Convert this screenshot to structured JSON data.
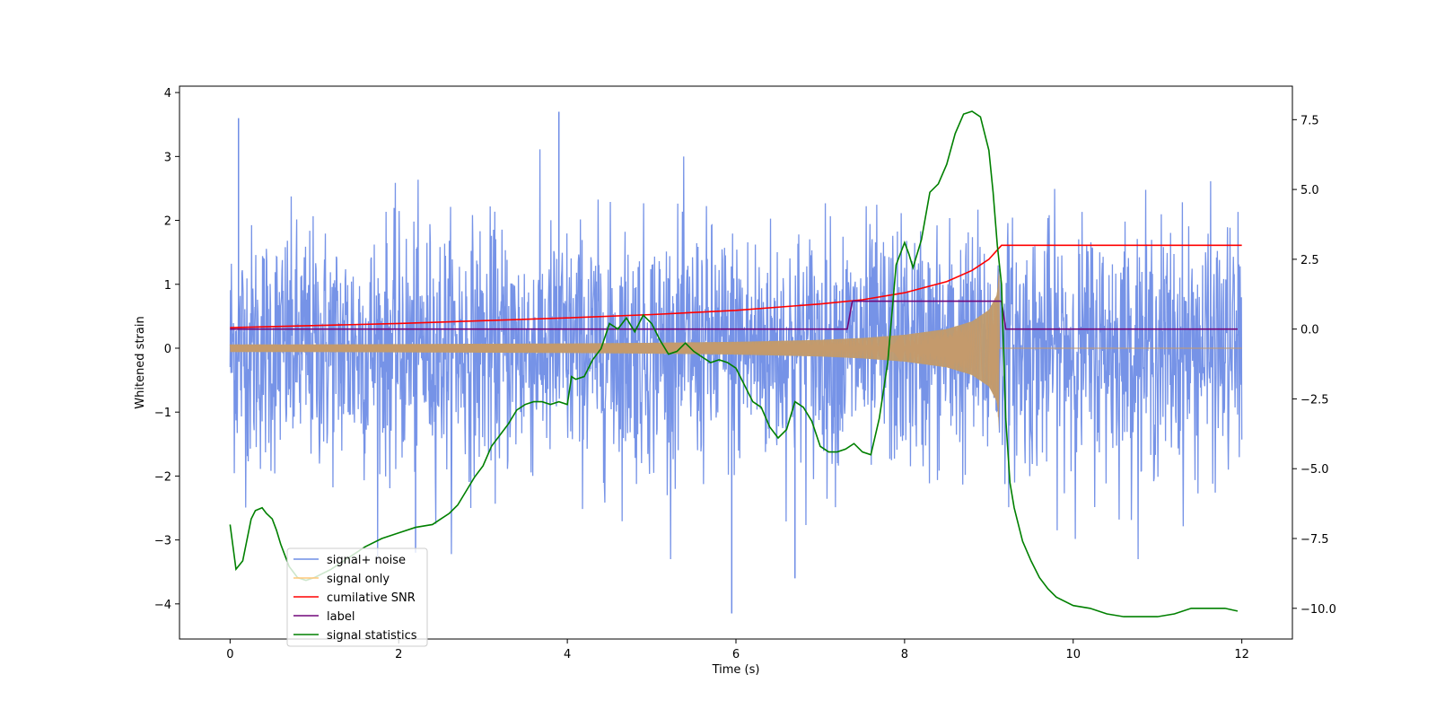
{
  "chart_data": {
    "type": "line",
    "title": "",
    "xlabel": "Time (s)",
    "ylabel": "Whitened strain",
    "ylabel_right": "",
    "xlim": [
      -0.6,
      12.6
    ],
    "ylim_left": [
      -4.55,
      4.1
    ],
    "ylim_right": [
      -11.1,
      8.7
    ],
    "xticks": [
      0,
      2,
      4,
      6,
      8,
      10,
      12
    ],
    "xtick_labels": [
      "0",
      "2",
      "4",
      "6",
      "8",
      "10",
      "12"
    ],
    "yticks_left": [
      4,
      3,
      2,
      1,
      0,
      -1,
      -2,
      -3,
      -4
    ],
    "ytick_labels_left": [
      "4",
      "3",
      "2",
      "1",
      "0",
      "−1",
      "−2",
      "−3",
      "−4"
    ],
    "yticks_right": [
      7.5,
      5.0,
      2.5,
      0.0,
      -2.5,
      -5.0,
      -7.5,
      -10.0
    ],
    "ytick_labels_right": [
      "7.5",
      "5.0",
      "2.5",
      "0.0",
      "−2.5",
      "−5.0",
      "−7.5",
      "−10.0"
    ],
    "grid": false,
    "legend_position": "lower-left",
    "series": [
      {
        "name": "signal+ noise",
        "axis": "left",
        "color": "#6f8de6",
        "kind": "noisy",
        "x_range": [
          0,
          12
        ],
        "std": 0.95,
        "notable_extremes": [
          [
            0.1,
            3.6
          ],
          [
            3.9,
            3.7
          ],
          [
            5.95,
            -4.15
          ],
          [
            6.7,
            -3.6
          ],
          [
            2.2,
            -3.2
          ]
        ]
      },
      {
        "name": "signal only",
        "axis": "left",
        "color": "#ffc87a",
        "kind": "chirp-envelope",
        "x": [
          0,
          1,
          2,
          3,
          4,
          5,
          6,
          7,
          7.5,
          8,
          8.5,
          8.8,
          9.0,
          9.1,
          9.12,
          9.13,
          12
        ],
        "amplitude": [
          0.06,
          0.06,
          0.065,
          0.07,
          0.075,
          0.085,
          0.1,
          0.13,
          0.16,
          0.21,
          0.3,
          0.42,
          0.6,
          0.85,
          1.3,
          0.0,
          0.0
        ]
      },
      {
        "name": "cumilative SNR",
        "axis": "right",
        "color": "#ff0000",
        "x": [
          0,
          2,
          4,
          5,
          6,
          7,
          7.5,
          8,
          8.5,
          8.8,
          9.0,
          9.15,
          12
        ],
        "y": [
          0.05,
          0.2,
          0.4,
          0.52,
          0.67,
          0.9,
          1.05,
          1.3,
          1.7,
          2.1,
          2.5,
          3.0,
          3.0
        ]
      },
      {
        "name": "label",
        "axis": "right",
        "color": "#70077a",
        "x": [
          0,
          7.32,
          7.38,
          9.15,
          9.2,
          11.95
        ],
        "y": [
          0.0,
          0.0,
          1.0,
          1.0,
          0.0,
          0.0
        ]
      },
      {
        "name": "signal statistics",
        "axis": "right",
        "color": "#008000",
        "x": [
          0,
          0.07,
          0.15,
          0.25,
          0.3,
          0.38,
          0.43,
          0.5,
          0.55,
          0.6,
          0.65,
          0.7,
          0.8,
          0.9,
          1.0,
          1.2,
          1.4,
          1.6,
          1.8,
          2.0,
          2.2,
          2.4,
          2.5,
          2.6,
          2.7,
          2.8,
          2.9,
          3.0,
          3.1,
          3.2,
          3.3,
          3.4,
          3.5,
          3.6,
          3.7,
          3.8,
          3.9,
          4.0,
          4.05,
          4.1,
          4.2,
          4.3,
          4.4,
          4.5,
          4.6,
          4.7,
          4.8,
          4.9,
          5.0,
          5.1,
          5.2,
          5.3,
          5.4,
          5.5,
          5.6,
          5.7,
          5.8,
          5.9,
          6.0,
          6.1,
          6.2,
          6.3,
          6.4,
          6.5,
          6.6,
          6.7,
          6.8,
          6.9,
          7.0,
          7.1,
          7.2,
          7.3,
          7.4,
          7.5,
          7.6,
          7.7,
          7.8,
          7.9,
          8.0,
          8.05,
          8.1,
          8.2,
          8.3,
          8.4,
          8.5,
          8.6,
          8.7,
          8.8,
          8.9,
          9.0,
          9.05,
          9.1,
          9.15,
          9.2,
          9.25,
          9.3,
          9.4,
          9.5,
          9.6,
          9.7,
          9.8,
          10.0,
          10.2,
          10.4,
          10.6,
          10.8,
          11.0,
          11.2,
          11.4,
          11.6,
          11.8,
          11.95
        ],
        "y": [
          -7.0,
          -8.6,
          -8.3,
          -6.8,
          -6.5,
          -6.4,
          -6.6,
          -6.8,
          -7.2,
          -7.7,
          -8.1,
          -8.5,
          -8.9,
          -9.0,
          -8.9,
          -8.6,
          -8.2,
          -7.8,
          -7.5,
          -7.3,
          -7.1,
          -7.0,
          -6.8,
          -6.6,
          -6.3,
          -5.8,
          -5.3,
          -4.9,
          -4.2,
          -3.8,
          -3.4,
          -2.9,
          -2.7,
          -2.6,
          -2.6,
          -2.7,
          -2.6,
          -2.7,
          -1.7,
          -1.8,
          -1.7,
          -1.1,
          -0.7,
          0.2,
          0.0,
          0.4,
          -0.1,
          0.5,
          0.2,
          -0.4,
          -0.9,
          -0.8,
          -0.5,
          -0.8,
          -1.0,
          -1.2,
          -1.1,
          -1.2,
          -1.4,
          -2.0,
          -2.6,
          -2.8,
          -3.5,
          -3.9,
          -3.6,
          -2.6,
          -2.8,
          -3.3,
          -4.2,
          -4.4,
          -4.4,
          -4.3,
          -4.1,
          -4.4,
          -4.5,
          -3.2,
          -1.2,
          2.3,
          3.1,
          2.7,
          2.2,
          3.2,
          4.9,
          5.2,
          5.9,
          7.0,
          7.7,
          7.8,
          7.6,
          6.4,
          4.9,
          3.0,
          1.6,
          -3.2,
          -5.5,
          -6.4,
          -7.6,
          -8.3,
          -8.9,
          -9.3,
          -9.6,
          -9.9,
          -10.0,
          -10.2,
          -10.3,
          -10.3,
          -10.3,
          -10.2,
          -10.0,
          -10.0,
          -10.0,
          -10.1
        ]
      }
    ]
  },
  "legend": {
    "items": [
      {
        "label": "signal+ noise",
        "color": "#6f8de6"
      },
      {
        "label": "signal only",
        "color": "#ffc87a"
      },
      {
        "label": "cumilative SNR",
        "color": "#ff0000"
      },
      {
        "label": "label",
        "color": "#70077a"
      },
      {
        "label": "signal statistics",
        "color": "#008000"
      }
    ]
  }
}
